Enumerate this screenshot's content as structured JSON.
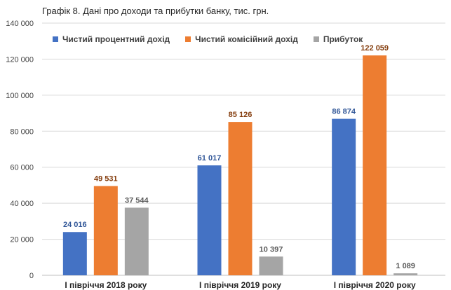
{
  "title": "Графік 8. Дані про доходи та прибутки банку, тис. грн.",
  "chart_data": {
    "type": "bar",
    "title": "Графік 8. Дані про доходи та прибутки банку, тис. грн.",
    "categories": [
      "І півріччя 2018 року",
      "І півріччя 2019 року",
      "І півріччя 2020 року"
    ],
    "series": [
      {
        "name": "Чистий процентний дохід",
        "color": "#4472c4",
        "label_color": "#2f5597",
        "values": [
          24016,
          61017,
          86874
        ],
        "labels": [
          "24 016",
          "61 017",
          "86 874"
        ]
      },
      {
        "name": "Чистий комісійний дохід",
        "color": "#ed7d31",
        "label_color": "#843c0c",
        "values": [
          49531,
          85126,
          122059
        ],
        "labels": [
          "49 531",
          "85 126",
          "122 059"
        ]
      },
      {
        "name": "Прибуток",
        "color": "#a5a5a5",
        "label_color": "#595959",
        "values": [
          37544,
          10397,
          1089
        ],
        "labels": [
          "37 544",
          "10 397",
          "1 089"
        ]
      }
    ],
    "ylim": [
      0,
      140000
    ],
    "yticks": [
      "0",
      "20 000",
      "40 000",
      "60 000",
      "80 000",
      "100 000",
      "120 000",
      "140 000"
    ],
    "grid": true,
    "legend_position": "top"
  }
}
